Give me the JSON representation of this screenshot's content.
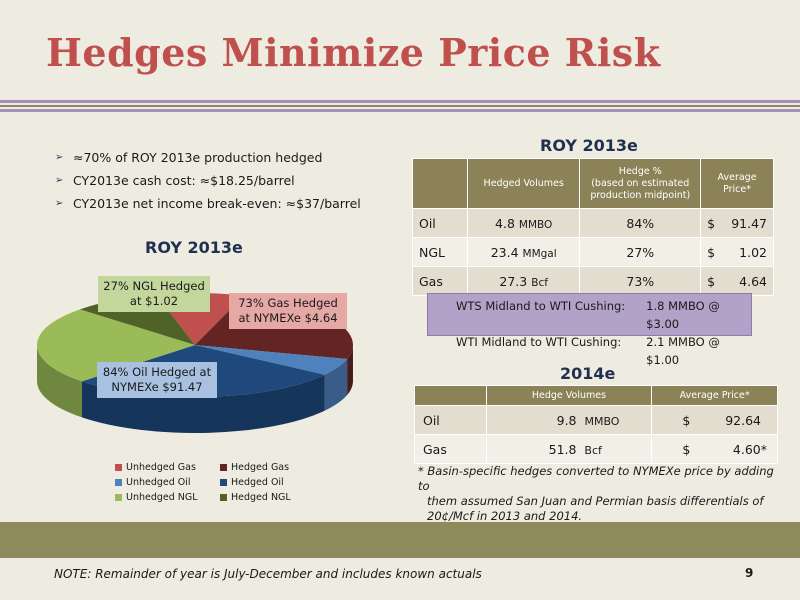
{
  "title": "Hedges Minimize Price Risk",
  "bullets": [
    "≈70% of ROY 2013e production hedged",
    "CY2013e cash cost: ≈$18.25/barrel",
    "CY2013e net income break-even: ≈$37/barrel"
  ],
  "pie_title": "ROY 2013e",
  "callouts": {
    "ngl": "27% NGL Hedged at $1.02",
    "gas": "73% Gas Hedged at NYMEXe $4.64",
    "oil": "84% Oil Hedged at NYMEXe $91.47"
  },
  "chart_data": {
    "type": "pie",
    "title": "ROY 2013e",
    "legend_position": "bottom",
    "slices": [
      {
        "name": "Unhedged Gas",
        "value": 27,
        "color": "#c0504d"
      },
      {
        "name": "Hedged Gas",
        "value": 73,
        "color": "#632523"
      },
      {
        "name": "Unhedged Oil",
        "value": 16,
        "color": "#4f81bd"
      },
      {
        "name": "Hedged Oil",
        "value": 84,
        "color": "#1f497d"
      },
      {
        "name": "Unhedged NGL",
        "value": 73,
        "color": "#9bbb59"
      },
      {
        "name": "Hedged NGL",
        "value": 27,
        "color": "#4f6228"
      }
    ]
  },
  "table2013": {
    "title": "ROY 2013e",
    "headers": [
      "",
      "Hedged Volumes",
      "Hedge %\n(based on estimated\nproduction midpoint)",
      "Average\nPrice*"
    ],
    "rows": [
      {
        "name": "Oil",
        "vol": "4.8",
        "unit": "MMBO",
        "pct": "84%",
        "cur": "$",
        "price": "91.47"
      },
      {
        "name": "NGL",
        "vol": "23.4",
        "unit": "MMgal",
        "pct": "27%",
        "cur": "$",
        "price": "1.02"
      },
      {
        "name": "Gas",
        "vol": "27.3",
        "unit": "Bcf",
        "pct": "73%",
        "cur": "$",
        "price": "4.64"
      }
    ]
  },
  "basis": [
    {
      "label": "WTS Midland to WTI Cushing:",
      "value": "1.8 MMBO @ $3.00"
    },
    {
      "label": "WTI Midland to WTI Cushing:",
      "value": "2.1 MMBO @ $1.00"
    }
  ],
  "table2014": {
    "title": "2014e",
    "headers": [
      "",
      "Hedge Volumes",
      "Average Price*"
    ],
    "rows": [
      {
        "name": "Oil",
        "vol": "9.8",
        "unit": "MMBO",
        "cur": "$",
        "price": "92.64"
      },
      {
        "name": "Gas",
        "vol": "51.8",
        "unit": "Bcf",
        "cur": "$",
        "price": "4.60*"
      }
    ]
  },
  "footnote": {
    "line1": "* Basin-specific hedges converted to NYMEXe price by adding to",
    "line2": "them assumed San Juan and Permian basis differentials of",
    "line3": "20¢/Mcf in 2013 and 2014."
  },
  "note": "NOTE: Remainder of year is July-December and includes known actuals",
  "page_number": "9"
}
